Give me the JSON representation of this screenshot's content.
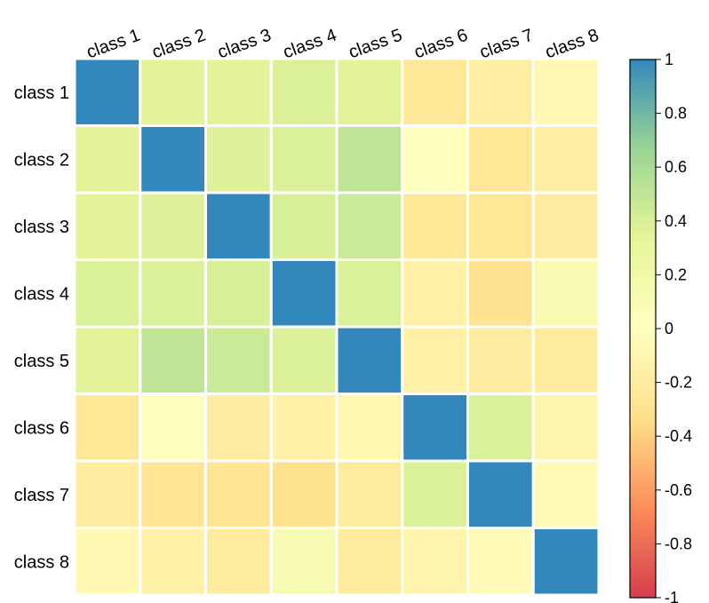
{
  "chart_data": {
    "type": "heatmap",
    "title": "",
    "xlabel": "",
    "ylabel": "",
    "x_categories": [
      "class 1",
      "class 2",
      "class 3",
      "class 4",
      "class 5",
      "class 6",
      "class 7",
      "class 8"
    ],
    "y_categories": [
      "class 1",
      "class 2",
      "class 3",
      "class 4",
      "class 5",
      "class 6",
      "class 7",
      "class 8"
    ],
    "values": [
      [
        1.0,
        0.35,
        0.35,
        0.38,
        0.35,
        -0.25,
        -0.18,
        -0.08
      ],
      [
        0.35,
        1.0,
        0.37,
        0.38,
        0.5,
        0.02,
        -0.25,
        -0.18
      ],
      [
        0.35,
        0.37,
        1.0,
        0.4,
        0.45,
        -0.25,
        -0.25,
        -0.2
      ],
      [
        0.38,
        0.38,
        0.4,
        1.0,
        0.38,
        -0.15,
        -0.3,
        0.12
      ],
      [
        0.35,
        0.5,
        0.45,
        0.38,
        1.0,
        -0.15,
        -0.2,
        -0.22
      ],
      [
        -0.25,
        0.02,
        -0.2,
        -0.15,
        -0.1,
        1.0,
        0.38,
        -0.12
      ],
      [
        -0.2,
        -0.28,
        -0.28,
        -0.32,
        -0.22,
        0.38,
        1.0,
        -0.05
      ],
      [
        -0.08,
        -0.15,
        -0.22,
        0.12,
        -0.22,
        -0.12,
        -0.05,
        1.0
      ]
    ],
    "colorbar": {
      "range": [
        -1,
        1
      ],
      "ticks": [
        "1",
        "0.8",
        "0.6",
        "0.4",
        "0.2",
        "0",
        "-0.2",
        "-0.4",
        "-0.6",
        "-0.8",
        "-1"
      ],
      "colors": [
        "#d53e4f",
        "#fc8d59",
        "#fee08b",
        "#ffffbf",
        "#e6f598",
        "#99d594",
        "#3288bd"
      ]
    },
    "grid": true,
    "legend": "colorbar-right"
  }
}
